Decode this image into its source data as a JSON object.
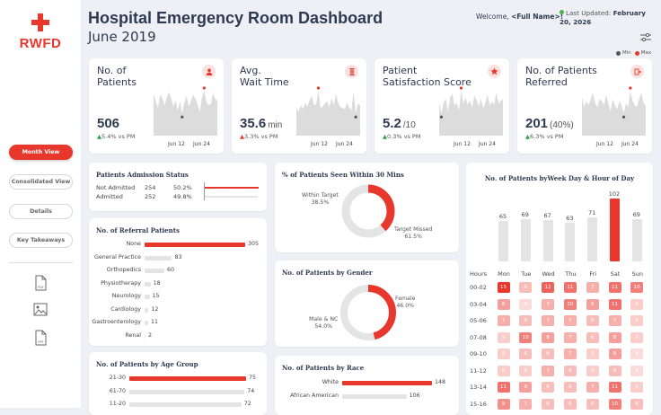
{
  "brand": {
    "name": "RWFD",
    "color": "#e8372d"
  },
  "header": {
    "title": "Hospital Emergency Room Dashboard",
    "period": "June 2019",
    "welcome_label": "Welcome,",
    "user": "<Full Name>!",
    "updated_label": "Last Updated:",
    "updated_date": "February 20, 2026"
  },
  "legend": {
    "min_label": "Min",
    "max_label": "Max"
  },
  "nav": {
    "items": [
      "Month View",
      "Consolidated View",
      "Details",
      "Key Takeaways"
    ],
    "active": "Month View"
  },
  "exports": [
    "PDF",
    "image-export-icon",
    "PPT"
  ],
  "kpis": [
    {
      "title_l1": "No. of",
      "title_l2": "Patients",
      "value": "506",
      "unit": "",
      "delta": "5.4%",
      "delta_dir": "up-green",
      "vs": "vs PM",
      "icon": "person-icon",
      "tick1": "Jun 12",
      "tick2": "Jun 24"
    },
    {
      "title_l1": "Avg.",
      "title_l2": "Wait Time",
      "value": "35.6",
      "unit": "min",
      "delta": "3.3%",
      "delta_dir": "up-red",
      "vs": "vs PM",
      "icon": "hourglass-icon",
      "tick1": "Jun 12",
      "tick2": "Jun 24"
    },
    {
      "title_l1": "Patient",
      "title_l2": "Satisfaction Score",
      "value": "5.2",
      "unit": "/10",
      "delta": "0.3%",
      "delta_dir": "up-green",
      "vs": "vs PM",
      "icon": "star-icon",
      "tick1": "Jun 12",
      "tick2": "Jun 24"
    },
    {
      "title_l1": "No. of Patients",
      "title_l2": "Referred",
      "value": "201",
      "unit": "(40%)",
      "delta": "6.3%",
      "delta_dir": "up-green",
      "vs": "vs PM",
      "icon": "referral-icon",
      "tick1": "Jun 12",
      "tick2": "Jun 24"
    }
  ],
  "admission": {
    "title": "Patients Admission Status",
    "rows": [
      {
        "label": "Not Admitted",
        "count": "254",
        "pct": "50.2%"
      },
      {
        "label": "Admitted",
        "count": "252",
        "pct": "49.8%"
      }
    ]
  },
  "referral": {
    "title": "No. of Referral Patients",
    "rows": [
      {
        "label": "None",
        "value": 305
      },
      {
        "label": "General Practice",
        "value": 83
      },
      {
        "label": "Orthopedics",
        "value": 60
      },
      {
        "label": "Physiotherapy",
        "value": 18
      },
      {
        "label": "Neurology",
        "value": 15
      },
      {
        "label": "Cardiology",
        "value": 12
      },
      {
        "label": "Gastroenterology",
        "value": 11
      },
      {
        "label": "Renal",
        "value": 2
      }
    ]
  },
  "age": {
    "title": "No. of Patients by Age Group",
    "rows": [
      {
        "label": "21-30",
        "value": 75
      },
      {
        "label": "61-70",
        "value": 74
      },
      {
        "label": "11-20",
        "value": 72
      }
    ]
  },
  "seen30": {
    "title": "% of Patients Seen Within 30 Mins",
    "within_label": "Within Target",
    "within_pct": "38.5%",
    "within_value": 38.5,
    "missed_label": "Target Missed",
    "missed_pct": "61.5%"
  },
  "gender": {
    "title": "No. of Patients by Gender",
    "female_label": "Female",
    "female_pct": "46.0%",
    "female_value": 46.0,
    "male_label": "Male & NC",
    "male_pct": "54.0%"
  },
  "race": {
    "title": "No. of Patients by Race",
    "rows": [
      {
        "label": "White",
        "value": 148
      },
      {
        "label": "African American",
        "value": 106
      }
    ]
  },
  "weekly": {
    "title": "No. of Patients byWeek Day & Hour of Day",
    "days": [
      "Mon",
      "Tue",
      "Wed",
      "Thu",
      "Fri",
      "Sat",
      "Sun"
    ],
    "totals": [
      65,
      69,
      67,
      63,
      71,
      102,
      69
    ],
    "hours_label": "Hours",
    "hours": [
      "00-02",
      "03-04",
      "05-06",
      "07-08",
      "09-10",
      "11-12",
      "13-14",
      "15-16"
    ],
    "grid": [
      [
        15,
        6,
        12,
        11,
        7,
        11,
        10
      ],
      [
        8,
        4,
        7,
        10,
        8,
        11,
        5
      ],
      [
        7,
        6,
        7,
        7,
        6,
        7,
        5
      ],
      [
        5,
        10,
        8,
        7,
        6,
        8,
        5
      ],
      [
        5,
        6,
        6,
        7,
        5,
        8,
        4
      ],
      [
        5,
        5,
        7,
        6,
        5,
        6,
        4
      ],
      [
        11,
        8,
        6,
        6,
        7,
        11,
        5
      ],
      [
        9,
        7,
        6,
        6,
        6,
        10,
        6
      ]
    ]
  },
  "chart_data": [
    {
      "type": "line",
      "title": "No. of Patients",
      "x": [
        1,
        2,
        3,
        4,
        5,
        6,
        7,
        8,
        9,
        10,
        11,
        12,
        13,
        14,
        15,
        16,
        17,
        18,
        19,
        20,
        21,
        22,
        23,
        24,
        25,
        26,
        27,
        28,
        29,
        30
      ],
      "values": [
        24,
        18,
        13,
        23,
        20,
        15,
        21,
        25,
        20,
        14,
        19,
        11,
        18,
        9,
        17,
        22,
        14,
        18,
        23,
        20,
        16,
        10,
        21,
        26,
        18,
        15,
        16,
        24,
        20,
        18
      ],
      "xticks": [
        "Jun 12",
        "Jun 24"
      ]
    },
    {
      "type": "line",
      "title": "Avg. Wait Time",
      "x": [
        1,
        2,
        3,
        4,
        5,
        6,
        7,
        8,
        9,
        10,
        11,
        12,
        13,
        14,
        15,
        16,
        17,
        18,
        19,
        20,
        21,
        22,
        23,
        24,
        25,
        26,
        27,
        28,
        29,
        30
      ],
      "values": [
        30,
        24,
        33,
        28,
        36,
        31,
        40,
        45,
        33,
        34,
        52,
        29,
        31,
        35,
        38,
        30,
        42,
        33,
        48,
        36,
        31,
        29,
        28,
        36,
        30,
        26,
        50,
        22,
        35,
        32
      ],
      "xticks": [
        "Jun 12",
        "Jun 24"
      ]
    },
    {
      "type": "line",
      "title": "Patient Satisfaction Score",
      "x": [
        1,
        2,
        3,
        4,
        5,
        6,
        7,
        8,
        9,
        10,
        11,
        12,
        13,
        14,
        15,
        16,
        17,
        18,
        19,
        20,
        21,
        22,
        23,
        24,
        25,
        26,
        27,
        28,
        29,
        30
      ],
      "values": [
        5.2,
        4.0,
        5.1,
        5.5,
        4.2,
        5.6,
        6.0,
        4.8,
        5.1,
        4.3,
        6.3,
        5.0,
        5.6,
        4.9,
        5.3,
        4.6,
        5.8,
        5.4,
        4.7,
        5.5,
        4.5,
        5.1,
        5.9,
        4.8,
        5.2,
        4.9,
        6.1,
        5.0,
        5.3,
        5.4
      ],
      "xticks": [
        "Jun 12",
        "Jun 24"
      ]
    },
    {
      "type": "line",
      "title": "No. of Patients Referred",
      "x": [
        1,
        2,
        3,
        4,
        5,
        6,
        7,
        8,
        9,
        10,
        11,
        12,
        13,
        14,
        15,
        16,
        17,
        18,
        19,
        20,
        21,
        22,
        23,
        24,
        25,
        26,
        27,
        28,
        29,
        30
      ],
      "values": [
        10,
        5,
        8,
        6,
        9,
        12,
        7,
        5,
        9,
        8,
        6,
        11,
        7,
        3,
        9,
        6,
        4,
        8,
        6,
        2,
        7,
        5,
        13,
        8,
        6,
        5,
        9,
        12,
        7,
        6
      ],
      "xticks": [
        "Jun 12",
        "Jun 24"
      ]
    }
  ]
}
